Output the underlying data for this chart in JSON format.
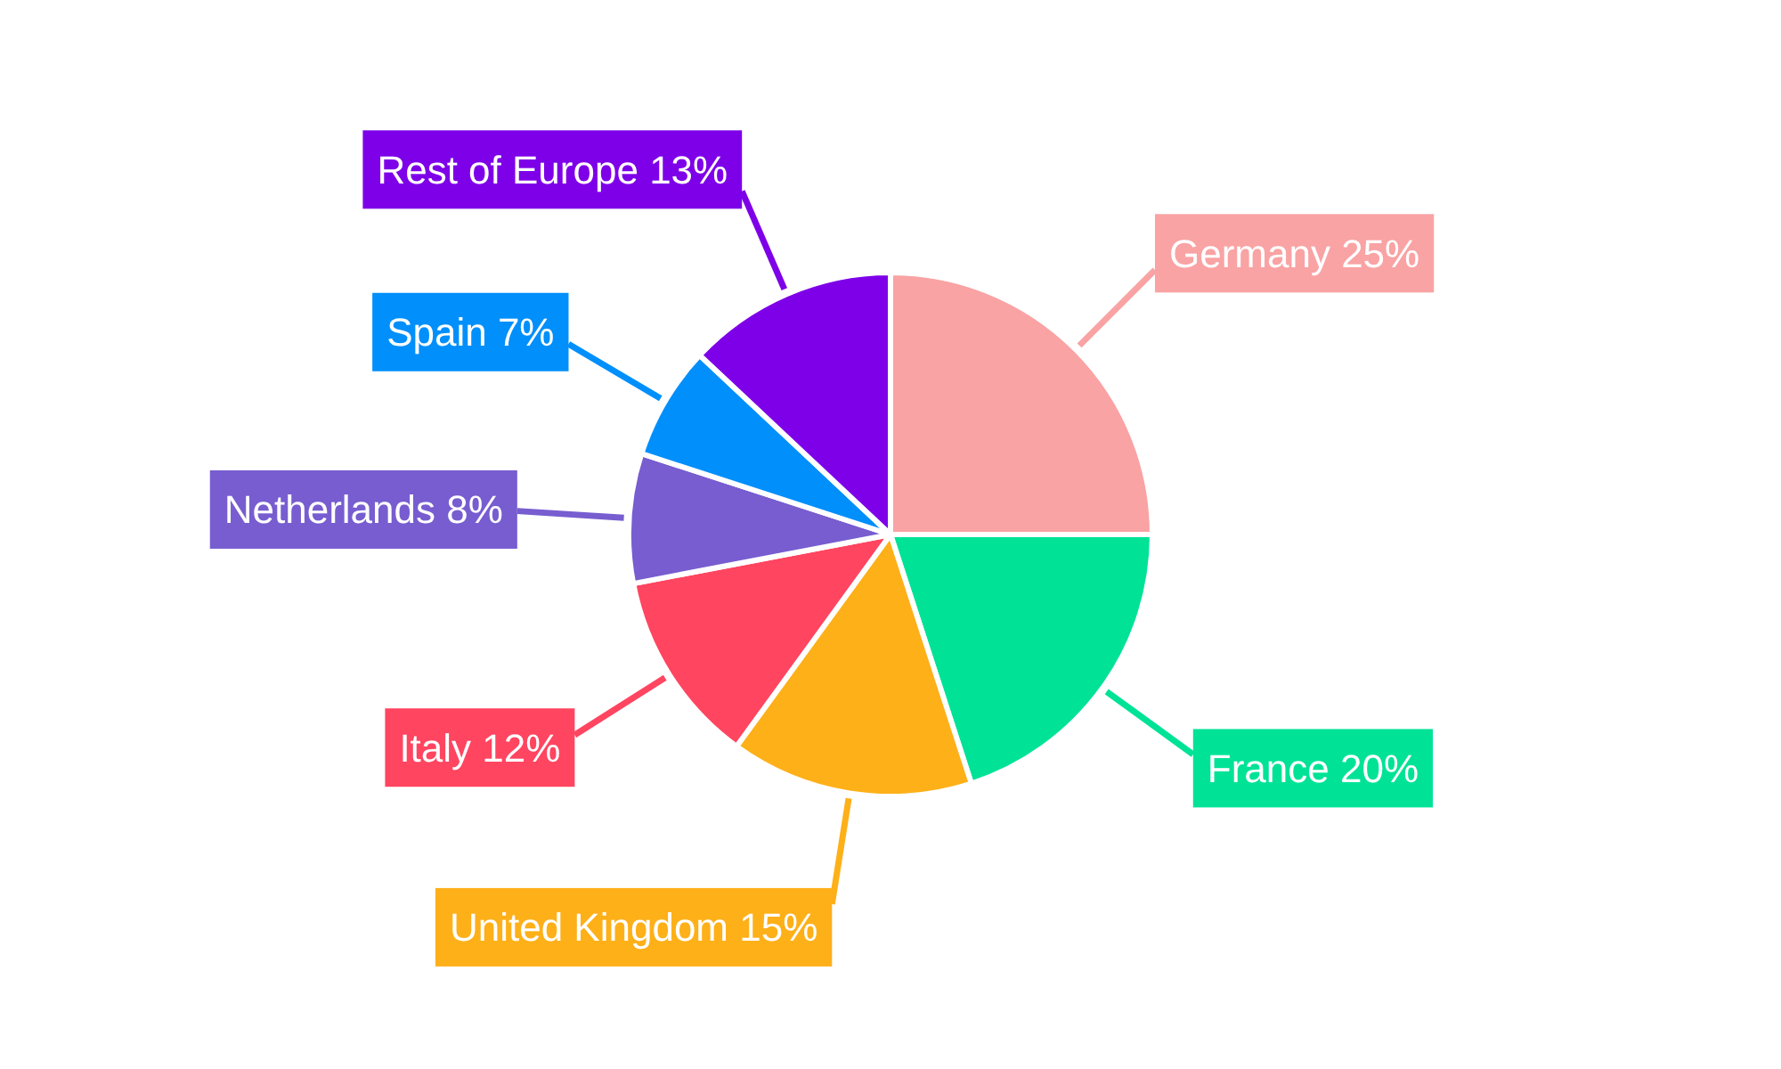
{
  "chart_data": {
    "type": "pie",
    "categories": [
      "Germany",
      "France",
      "United Kingdom",
      "Italy",
      "Netherlands",
      "Spain",
      "Rest of Europe"
    ],
    "values": [
      25,
      20,
      15,
      12,
      8,
      7,
      13
    ],
    "colors": [
      "#f9a3a4",
      "#00e396",
      "#feb019",
      "#ff4560",
      "#775dd0",
      "#008ffb",
      "#7e00e8"
    ],
    "value_labels": [
      "25%",
      "20%",
      "15%",
      "12%",
      "8%",
      "7%",
      "13%"
    ]
  }
}
